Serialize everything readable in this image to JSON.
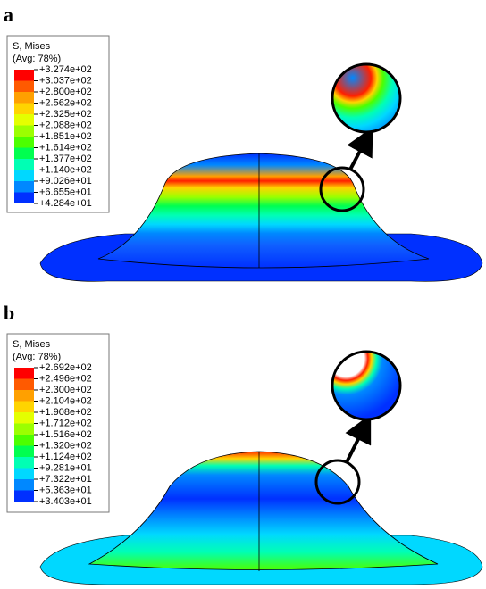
{
  "panels": [
    {
      "label": "a",
      "legend": {
        "title": "S, Mises",
        "subtitle": "(Avg: 78%)",
        "labels": [
          "+3.274e+02",
          "+3.037e+02",
          "+2.800e+02",
          "+2.562e+02",
          "+2.325e+02",
          "+2.088e+02",
          "+1.851e+02",
          "+1.614e+02",
          "+1.377e+02",
          "+1.140e+02",
          "+9.026e+01",
          "+6.655e+01",
          "+4.284e+01"
        ],
        "colors": [
          "#ff0000",
          "#ff5a00",
          "#ffa000",
          "#ffd400",
          "#e4ff00",
          "#9cff00",
          "#4cff00",
          "#00ff50",
          "#00ffb4",
          "#00d8ff",
          "#0088ff",
          "#0030ff"
        ]
      }
    },
    {
      "label": "b",
      "legend": {
        "title": "S, Mises",
        "subtitle": "(Avg: 78%)",
        "labels": [
          "+2.692e+02",
          "+2.496e+02",
          "+2.300e+02",
          "+2.104e+02",
          "+1.908e+02",
          "+1.712e+02",
          "+1.516e+02",
          "+1.320e+02",
          "+1.124e+02",
          "+9.281e+01",
          "+7.322e+01",
          "+5.363e+01",
          "+3.403e+01"
        ],
        "colors": [
          "#ff0000",
          "#ff5a00",
          "#ffa000",
          "#ffd400",
          "#e4ff00",
          "#9cff00",
          "#4cff00",
          "#00ff50",
          "#00ffb4",
          "#00d8ff",
          "#0088ff",
          "#0030ff"
        ]
      }
    }
  ]
}
